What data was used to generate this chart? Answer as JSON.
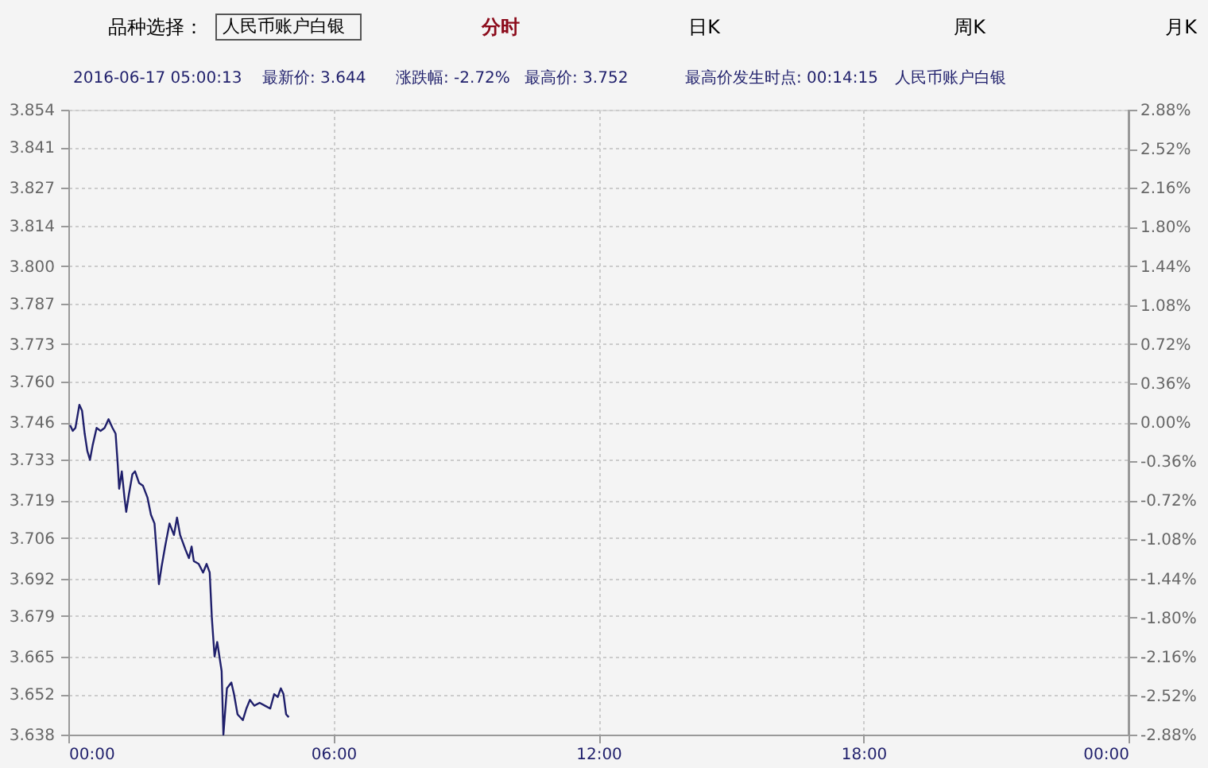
{
  "chart_data": {
    "type": "line",
    "annotations": [
      "品种选择：",
      "人民币账户白银",
      "分时",
      "日K",
      "周K",
      "月K",
      "2016-06-17 05:00:13",
      "最新价: 3.644",
      "涨跌幅: -2.72%",
      "最高价: 3.752",
      "最高价发生时点:  00:14:15",
      "人民币账户白银"
    ],
    "series": [
      {
        "color": "#1f1f6b",
        "x": [
          0.04,
          0.1,
          0.16,
          0.25,
          0.31,
          0.37,
          0.43,
          0.49,
          0.55,
          0.64,
          0.73,
          0.82,
          0.91,
          1.0,
          1.07,
          1.12,
          1.15,
          1.21,
          1.27,
          1.31,
          1.37,
          1.45,
          1.51,
          1.6,
          1.69,
          1.79,
          1.87,
          1.95,
          2.0,
          2.05,
          2.11,
          2.19,
          2.29,
          2.39,
          2.46,
          2.53,
          2.65,
          2.73,
          2.79,
          2.84,
          2.95,
          3.05,
          3.13,
          3.2,
          3.25,
          3.31,
          3.37,
          3.47,
          3.51,
          3.59,
          3.69,
          3.75,
          3.83,
          3.95,
          4.03,
          4.11,
          4.21,
          4.33,
          4.45,
          4.57,
          4.66,
          4.74,
          4.81,
          4.87,
          4.93,
          4.99
        ],
        "values": [
          3.745,
          3.743,
          3.744,
          3.752,
          3.75,
          3.742,
          3.736,
          3.733,
          3.738,
          3.744,
          3.743,
          3.744,
          3.747,
          3.744,
          3.742,
          3.731,
          3.723,
          3.729,
          3.72,
          3.715,
          3.721,
          3.728,
          3.729,
          3.725,
          3.724,
          3.72,
          3.714,
          3.711,
          3.701,
          3.69,
          3.696,
          3.703,
          3.711,
          3.707,
          3.713,
          3.707,
          3.702,
          3.699,
          3.703,
          3.698,
          3.697,
          3.694,
          3.697,
          3.694,
          3.678,
          3.665,
          3.67,
          3.66,
          3.638,
          3.654,
          3.656,
          3.652,
          3.645,
          3.643,
          3.647,
          3.65,
          3.648,
          3.649,
          3.648,
          3.647,
          3.652,
          3.651,
          3.654,
          3.652,
          3.645,
          3.644
        ]
      }
    ],
    "xlim": [
      0,
      24
    ],
    "xticks": [
      {
        "value": 0,
        "label": "00:00"
      },
      {
        "value": 6,
        "label": "06:00"
      },
      {
        "value": 12,
        "label": "12:00"
      },
      {
        "value": 18,
        "label": "18:00"
      },
      {
        "value": 24,
        "label": "00:00"
      }
    ],
    "ylim": [
      3.638,
      3.854
    ],
    "yticks": [
      3.638,
      3.652,
      3.665,
      3.679,
      3.692,
      3.706,
      3.719,
      3.733,
      3.746,
      {
        "value": 3.76,
        "label": "3.760"
      },
      3.773,
      3.787,
      {
        "value": 3.8,
        "label": "3.800"
      },
      3.814,
      3.827,
      3.841,
      3.854
    ],
    "y2lim": [
      -2.88,
      2.88
    ],
    "y2ticks": [
      {
        "value": -2.88,
        "label": "-2.88%"
      },
      {
        "value": -2.52,
        "label": "-2.52%"
      },
      {
        "value": -2.16,
        "label": "-2.16%"
      },
      {
        "value": -1.8,
        "label": "-1.80%"
      },
      {
        "value": -1.44,
        "label": "-1.44%"
      },
      {
        "value": -1.08,
        "label": "-1.08%"
      },
      {
        "value": -0.72,
        "label": "-0.72%"
      },
      {
        "value": -0.36,
        "label": "-0.36%"
      },
      {
        "value": 0,
        "label": "0.00%"
      },
      {
        "value": 0.36,
        "label": "0.36%"
      },
      {
        "value": 0.72,
        "label": "0.72%"
      },
      {
        "value": 1.08,
        "label": "1.08%"
      },
      {
        "value": 1.44,
        "label": "1.44%"
      },
      {
        "value": 1.8,
        "label": "1.80%"
      },
      {
        "value": 2.16,
        "label": "2.16%"
      },
      {
        "value": 2.52,
        "label": "2.52%"
      },
      {
        "value": 2.88,
        "label": "2.88%"
      }
    ],
    "grid": true,
    "line_style": "solid",
    "marker": "none"
  }
}
